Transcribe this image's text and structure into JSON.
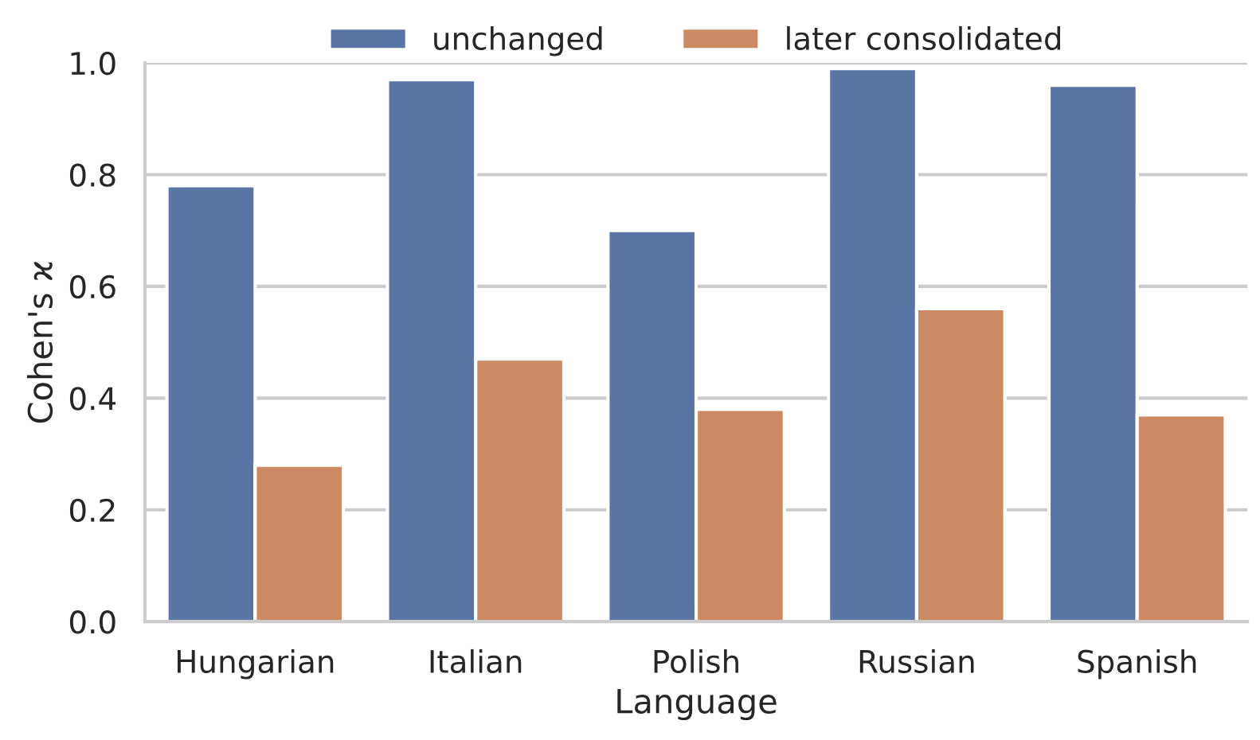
{
  "chart_data": {
    "type": "bar",
    "xlabel": "Language",
    "ylabel": "Cohen's ϰ",
    "categories": [
      "Hungarian",
      "Italian",
      "Polish",
      "Russian",
      "Spanish"
    ],
    "series": [
      {
        "name": "unchanged",
        "color": "#5975a4",
        "values": [
          0.78,
          0.97,
          0.7,
          0.99,
          0.96
        ]
      },
      {
        "name": "later consolidated",
        "color": "#cc8963",
        "values": [
          0.28,
          0.47,
          0.38,
          0.56,
          0.37
        ]
      }
    ],
    "ylim": [
      0,
      1.0
    ],
    "yticks": [
      {
        "value": 0,
        "label": "0.0"
      },
      {
        "value": 0.2,
        "label": "0.2"
      },
      {
        "value": 0.4,
        "label": "0.4"
      },
      {
        "value": 0.6,
        "label": "0.6"
      },
      {
        "value": 0.8,
        "label": "0.8"
      },
      {
        "value": 1.0,
        "label": "1.0"
      }
    ],
    "grid": "y",
    "legend": "top"
  }
}
